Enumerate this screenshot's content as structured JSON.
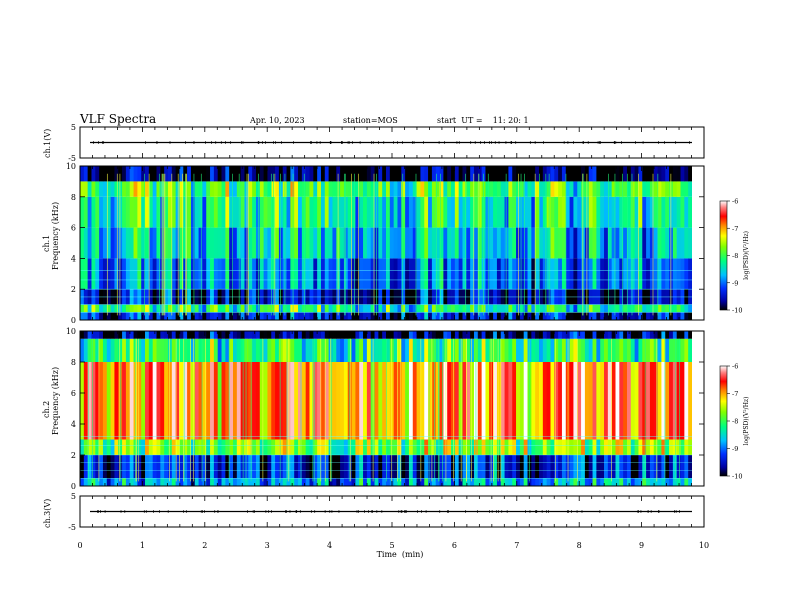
{
  "header": {
    "title": "VLF Spectra",
    "date": "Apr. 10, 2023",
    "station": "station=MOS",
    "start": "start  UT =    11: 20: 1"
  },
  "chart_data": [
    {
      "type": "line",
      "panel": "ch1-waveform",
      "ylabel": "ch.1(V)",
      "yticks": [
        "5",
        "-5"
      ],
      "ylim": [
        -5,
        5
      ],
      "x": [
        0,
        10
      ],
      "values": [
        0,
        0
      ],
      "grid": false
    },
    {
      "type": "heatmap",
      "panel": "ch1-spectrogram",
      "ylabel": "ch.1\nFrequency (kHz)",
      "ylabel_line1": "ch.1",
      "ylabel_line2": "Frequency  (kHz)",
      "yticks": [
        "0",
        "2",
        "4",
        "6",
        "8",
        "10"
      ],
      "ylim": [
        0,
        10
      ],
      "xlim": [
        0,
        10
      ],
      "colorbar": {
        "label": "log(PSD)(V²/Hz)",
        "ticks": [
          "-6",
          "-7",
          "-8",
          "-9",
          "-10"
        ],
        "range": [
          -10,
          -6
        ]
      },
      "bands": [
        {
          "f_from": 0,
          "f_to": 0.5,
          "level": -9.5
        },
        {
          "f_from": 0.5,
          "f_to": 1.0,
          "level": -8.2
        },
        {
          "f_from": 1.0,
          "f_to": 2.0,
          "level": -9.6
        },
        {
          "f_from": 2.0,
          "f_to": 4.0,
          "level": -9.0
        },
        {
          "f_from": 4.0,
          "f_to": 6.0,
          "level": -8.6
        },
        {
          "f_from": 6.0,
          "f_to": 8.0,
          "level": -8.3
        },
        {
          "f_from": 8.0,
          "f_to": 9.0,
          "level": -8.0
        },
        {
          "f_from": 9.0,
          "f_to": 10.0,
          "level": -10
        }
      ]
    },
    {
      "type": "heatmap",
      "panel": "ch2-spectrogram",
      "ylabel_line1": "ch.2",
      "ylabel_line2": "Frequency  (kHz)",
      "yticks": [
        "0",
        "2",
        "4",
        "6",
        "8",
        "10"
      ],
      "ylim": [
        0,
        10
      ],
      "xlim": [
        0,
        10
      ],
      "colorbar": {
        "label": "log(PSD)(V²/Hz)",
        "ticks": [
          "-6",
          "-7",
          "-8",
          "-9",
          "-10"
        ],
        "range": [
          -10,
          -6
        ]
      },
      "bands": [
        {
          "f_from": 0,
          "f_to": 0.5,
          "level": -8.8
        },
        {
          "f_from": 0.5,
          "f_to": 2.0,
          "level": -9.4
        },
        {
          "f_from": 2.0,
          "f_to": 3.0,
          "level": -7.8
        },
        {
          "f_from": 3.0,
          "f_to": 8.0,
          "level": -6.8
        },
        {
          "f_from": 8.0,
          "f_to": 9.5,
          "level": -8.2
        },
        {
          "f_from": 9.5,
          "f_to": 10.0,
          "level": -9.8
        }
      ]
    },
    {
      "type": "line",
      "panel": "ch3-waveform",
      "ylabel": "ch.3(V)",
      "yticks": [
        "5",
        "-5"
      ],
      "ylim": [
        -5,
        5
      ],
      "x": [
        0,
        10
      ],
      "values": [
        0,
        0
      ],
      "grid": false
    }
  ],
  "xaxis": {
    "label": "Time  (min)",
    "ticks": [
      "0",
      "1",
      "2",
      "3",
      "4",
      "5",
      "6",
      "7",
      "8",
      "9",
      "10"
    ],
    "xlim": [
      0,
      10
    ]
  }
}
